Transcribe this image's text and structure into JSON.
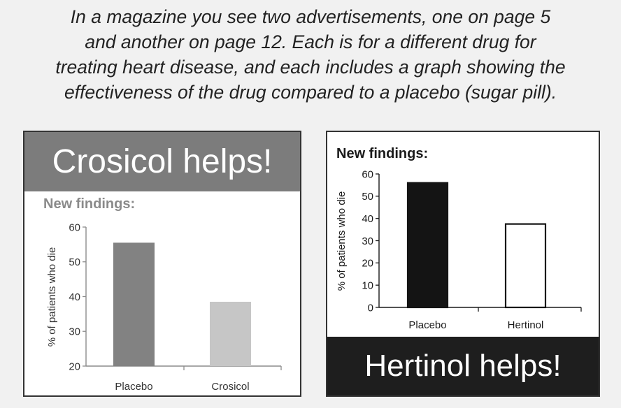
{
  "intro": {
    "lines": [
      "In a magazine you see two advertisements, one on page 5",
      "and another on page 12. Each is for a different drug for",
      "treating heart disease, and each includes a graph showing the",
      "effectiveness of the drug compared to a placebo (sugar pill)."
    ]
  },
  "ad1": {
    "headline": "Crosicol helps!",
    "findings": "New findings:"
  },
  "ad2": {
    "headline": "Hertinol helps!",
    "findings": "New findings:"
  },
  "chart_data": [
    {
      "type": "bar",
      "categories": [
        "Placebo",
        "Crosicol"
      ],
      "values": [
        55.5,
        38.5
      ],
      "ylabel": "% of patients who die",
      "yticks": [
        20,
        30,
        40,
        50,
        60
      ],
      "ylim": [
        20,
        60
      ],
      "bar_colors": [
        "#828282",
        "#c6c6c6"
      ],
      "bar_stroke": "none",
      "grid": false
    },
    {
      "type": "bar",
      "categories": [
        "Placebo",
        "Hertinol"
      ],
      "values": [
        56,
        37.5
      ],
      "ylabel": "% of patients who die",
      "yticks": [
        0,
        10,
        20,
        30,
        40,
        50,
        60
      ],
      "ylim": [
        0,
        60
      ],
      "bar_colors": [
        "#141414",
        "#ffffff"
      ],
      "bar_stroke": "#141414",
      "grid": false
    }
  ]
}
